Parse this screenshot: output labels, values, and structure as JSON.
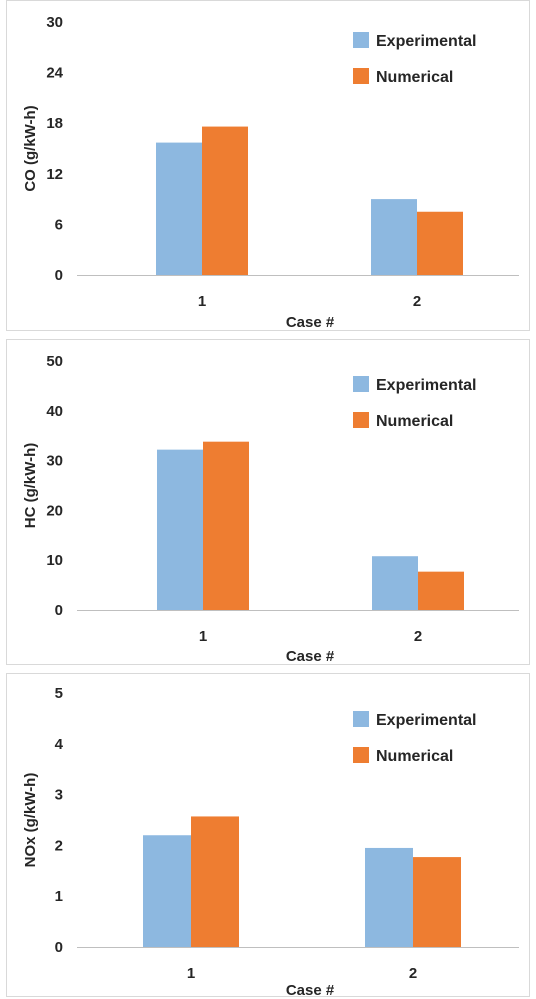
{
  "colors": {
    "experimental": "#8db8e0",
    "numerical": "#ee7d31",
    "axis": "#bfbfbf",
    "text": "#262626"
  },
  "chart_data": [
    {
      "type": "bar",
      "categories": [
        "1",
        "2"
      ],
      "series": [
        {
          "name": "Experimental",
          "values": [
            15.7,
            9.0
          ]
        },
        {
          "name": "Numerical",
          "values": [
            17.6,
            7.5
          ]
        }
      ],
      "xlabel": "Case #",
      "ylabel": "CO (g/kW-h)",
      "ylim": [
        0,
        30
      ],
      "yticks": [
        "0",
        "6",
        "12",
        "18",
        "24",
        "30"
      ],
      "grid": false,
      "legend": "top-right"
    },
    {
      "type": "bar",
      "categories": [
        "1",
        "2"
      ],
      "series": [
        {
          "name": "Experimental",
          "values": [
            32.2,
            10.8
          ]
        },
        {
          "name": "Numerical",
          "values": [
            33.8,
            7.7
          ]
        }
      ],
      "xlabel": "Case #",
      "ylabel": "HC (g/kW-h)",
      "ylim": [
        0,
        50
      ],
      "yticks": [
        "0",
        "10",
        "20",
        "30",
        "40",
        "50"
      ],
      "grid": false,
      "legend": "top-right"
    },
    {
      "type": "bar",
      "categories": [
        "1",
        "2"
      ],
      "series": [
        {
          "name": "Experimental",
          "values": [
            2.2,
            1.95
          ]
        },
        {
          "name": "Numerical",
          "values": [
            2.57,
            1.77
          ]
        }
      ],
      "xlabel": "Case #",
      "ylabel": "NOx (g/kW-h)",
      "ylim": [
        0,
        5
      ],
      "yticks": [
        "0",
        "1",
        "2",
        "3",
        "4",
        "5"
      ],
      "grid": false,
      "legend": "top-right"
    }
  ]
}
